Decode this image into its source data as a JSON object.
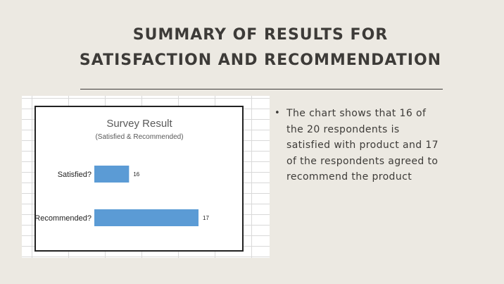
{
  "slide": {
    "title_line1": "SUMMARY OF RESULTS FOR",
    "title_line2": "SATISFACTION AND RECOMMENDATION",
    "bullet_marker": "•",
    "bullet_text": "The chart shows that 16 of the 20 respondents is satisfied with product and 17 of the respondents agreed to recommend the product"
  },
  "chart_data": {
    "type": "bar",
    "orientation": "horizontal",
    "title": "Survey Result",
    "subtitle": "(Satisfied & Recommended)",
    "categories": [
      "Satisfied?",
      "Recommended?"
    ],
    "values": [
      16,
      17
    ],
    "data_labels": [
      "16",
      "17"
    ],
    "bar_color": "#5b9bd5",
    "grid": false,
    "legend": "none"
  }
}
